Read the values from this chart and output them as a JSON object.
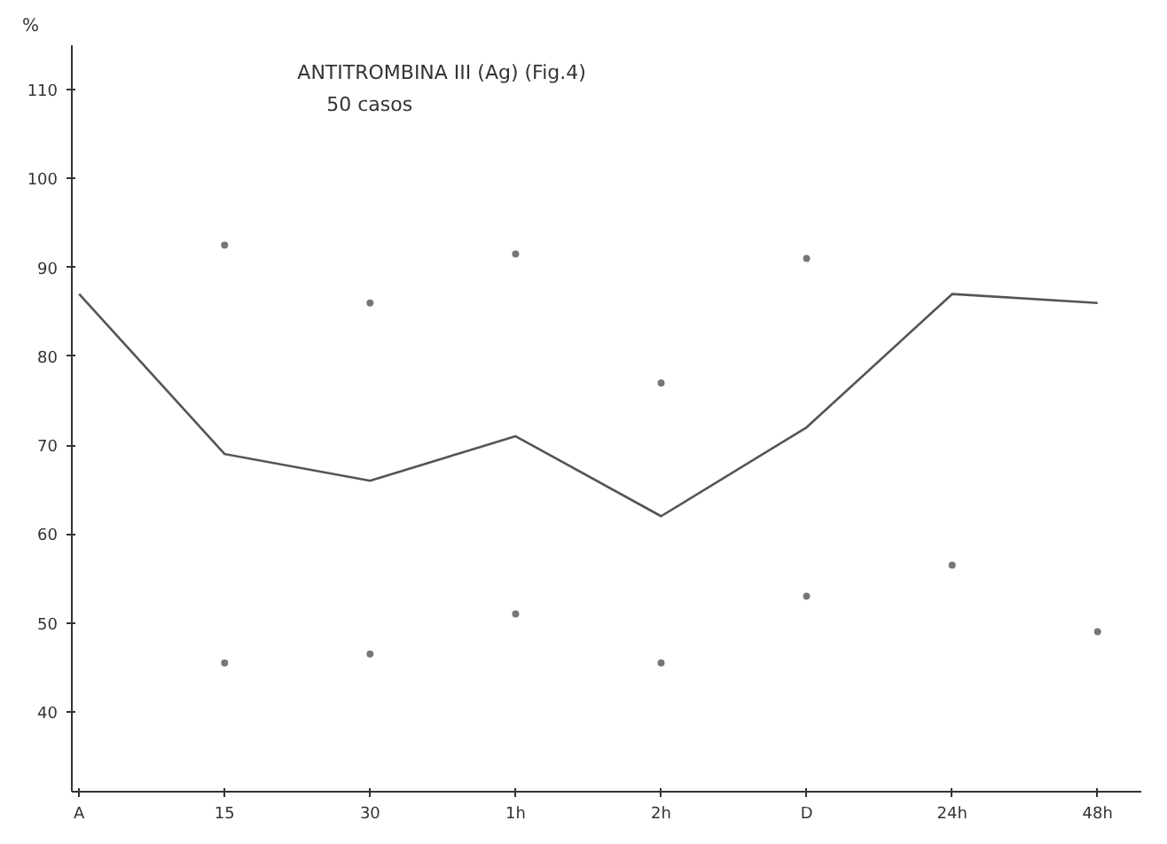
{
  "chart_data": {
    "type": "line",
    "title": "ANTITROMBINA III (Ag) (Fig.4)",
    "subtitle": "50 casos",
    "ylabel": "%",
    "categories": [
      "A",
      "15",
      "30",
      "1h",
      "2h",
      "D",
      "24h",
      "48h"
    ],
    "series": [
      {
        "color": "#555555",
        "values": [
          87,
          69,
          66,
          71,
          62,
          72,
          87,
          86
        ]
      },
      {
        "type": "scatter",
        "color": "#777777",
        "marker": "circle",
        "values": [
          null,
          92.5,
          86,
          91.5,
          77,
          91,
          null,
          null
        ]
      },
      {
        "type": "scatter",
        "color": "#777777",
        "marker": "circle",
        "values": [
          null,
          45.5,
          46.5,
          51,
          45.5,
          53,
          56.5,
          49
        ]
      }
    ],
    "ylim": [
      31,
      115
    ],
    "yticks": [
      40,
      50,
      60,
      70,
      80,
      90,
      100,
      110
    ],
    "grid": false
  }
}
